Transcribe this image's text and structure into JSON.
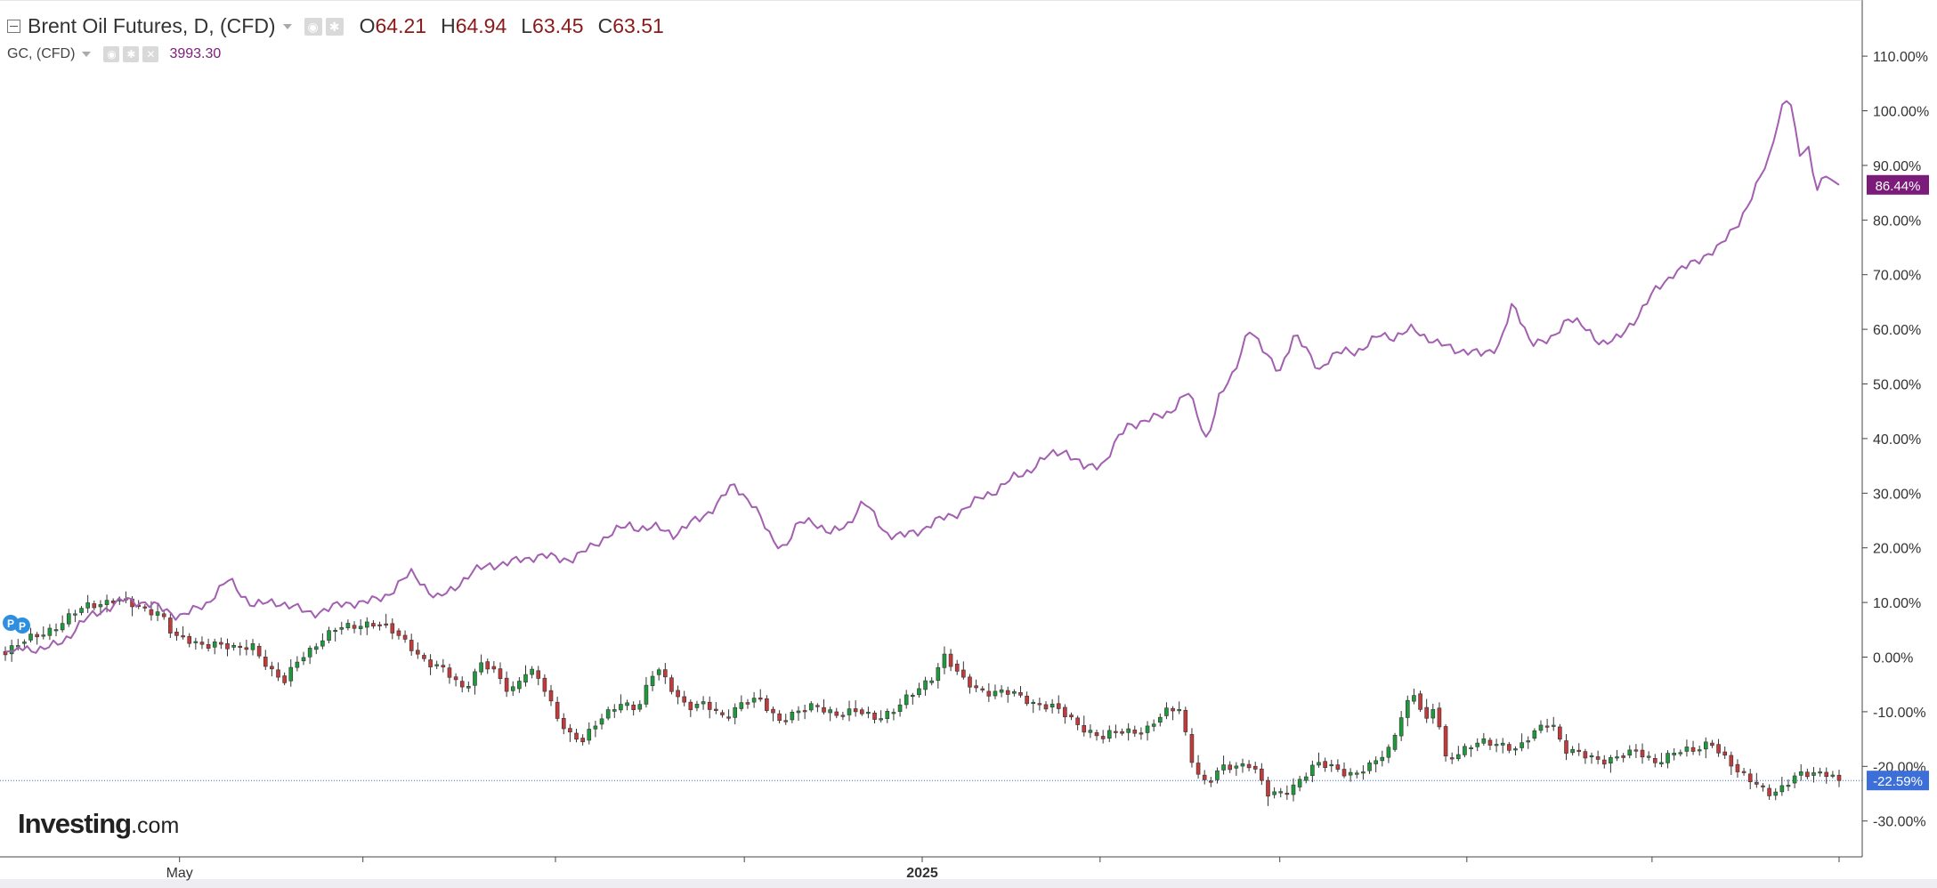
{
  "legend": {
    "main_title": "Brent Oil Futures, D, (CFD)",
    "ohlc": [
      {
        "k": "O",
        "v": "64.21"
      },
      {
        "k": "H",
        "v": "64.94"
      },
      {
        "k": "L",
        "v": "63.45"
      },
      {
        "k": "C",
        "v": "63.51"
      }
    ],
    "compare_title": "GC, (CFD)",
    "compare_value": "3993.30"
  },
  "logo": {
    "brand": "Investing",
    "suffix": ".com"
  },
  "colors": {
    "gc_line": "#a35fb0",
    "up_candle": "#1e9a3c",
    "down_candle": "#c23a3a",
    "gc_badge": "#7b1c7a",
    "brent_badge": "#3d6fd8",
    "grid_axis": "#444444"
  },
  "chart_data": {
    "type": "line",
    "title": "Brent Oil Futures, D, (CFD)",
    "y_axis": {
      "unit": "%",
      "side": "right",
      "ticks": [
        "110.00%",
        "100.00%",
        "90.00%",
        "80.00%",
        "70.00%",
        "60.00%",
        "50.00%",
        "40.00%",
        "30.00%",
        "20.00%",
        "10.00%",
        "0.00%",
        "-10.00%",
        "-20.00%",
        "-30.00%"
      ],
      "ylim": [
        -35,
        118
      ]
    },
    "x_axis": {
      "labels": [
        {
          "text": "May",
          "x": 0.095
        },
        {
          "text": "2025",
          "x": 0.5
        }
      ],
      "tick_marks": [
        0.095,
        0.195,
        0.3,
        0.403,
        0.5,
        0.597,
        0.695,
        0.797,
        0.898,
        1.0
      ]
    },
    "series": [
      {
        "name": "GC, (CFD)",
        "style": "line",
        "last_label": "86.44%",
        "points": [
          [
            0.0,
            1
          ],
          [
            0.02,
            1.5
          ],
          [
            0.035,
            4
          ],
          [
            0.05,
            8
          ],
          [
            0.065,
            11
          ],
          [
            0.08,
            9
          ],
          [
            0.095,
            8
          ],
          [
            0.11,
            9.5
          ],
          [
            0.122,
            14
          ],
          [
            0.135,
            10
          ],
          [
            0.15,
            9.5
          ],
          [
            0.165,
            8.5
          ],
          [
            0.18,
            9
          ],
          [
            0.195,
            10
          ],
          [
            0.21,
            12
          ],
          [
            0.222,
            15
          ],
          [
            0.235,
            11
          ],
          [
            0.25,
            14
          ],
          [
            0.265,
            17
          ],
          [
            0.28,
            18
          ],
          [
            0.295,
            18
          ],
          [
            0.31,
            18.5
          ],
          [
            0.325,
            21
          ],
          [
            0.34,
            24.5
          ],
          [
            0.355,
            23.5
          ],
          [
            0.365,
            22
          ],
          [
            0.375,
            25
          ],
          [
            0.388,
            28
          ],
          [
            0.397,
            31
          ],
          [
            0.408,
            28
          ],
          [
            0.418,
            22
          ],
          [
            0.425,
            20
          ],
          [
            0.433,
            24
          ],
          [
            0.44,
            25
          ],
          [
            0.45,
            23
          ],
          [
            0.46,
            24.5
          ],
          [
            0.468,
            28
          ],
          [
            0.48,
            23
          ],
          [
            0.49,
            22.5
          ],
          [
            0.5,
            23
          ],
          [
            0.51,
            25
          ],
          [
            0.525,
            28
          ],
          [
            0.54,
            30
          ],
          [
            0.55,
            33
          ],
          [
            0.565,
            36
          ],
          [
            0.578,
            37.5
          ],
          [
            0.588,
            35
          ],
          [
            0.6,
            36
          ],
          [
            0.612,
            42
          ],
          [
            0.625,
            44
          ],
          [
            0.635,
            45
          ],
          [
            0.645,
            48
          ],
          [
            0.655,
            40
          ],
          [
            0.662,
            48
          ],
          [
            0.67,
            52
          ],
          [
            0.678,
            60
          ],
          [
            0.685,
            56
          ],
          [
            0.695,
            53
          ],
          [
            0.703,
            59
          ],
          [
            0.71,
            56
          ],
          [
            0.717,
            52
          ],
          [
            0.722,
            54
          ],
          [
            0.73,
            57
          ],
          [
            0.74,
            56
          ],
          [
            0.75,
            59
          ],
          [
            0.758,
            58
          ],
          [
            0.768,
            61
          ],
          [
            0.78,
            57
          ],
          [
            0.793,
            56
          ],
          [
            0.805,
            56
          ],
          [
            0.815,
            57
          ],
          [
            0.822,
            64
          ],
          [
            0.832,
            58
          ],
          [
            0.842,
            58
          ],
          [
            0.852,
            62
          ],
          [
            0.86,
            60
          ],
          [
            0.87,
            58
          ],
          [
            0.88,
            58.5
          ],
          [
            0.89,
            62
          ],
          [
            0.9,
            67
          ],
          [
            0.91,
            71
          ],
          [
            0.922,
            72
          ],
          [
            0.935,
            75
          ],
          [
            0.945,
            80
          ],
          [
            0.955,
            86
          ],
          [
            0.962,
            91
          ],
          [
            0.968,
            100
          ],
          [
            0.973,
            103
          ],
          [
            0.978,
            92
          ],
          [
            0.983,
            94
          ],
          [
            0.988,
            86
          ],
          [
            0.993,
            88
          ],
          [
            1.0,
            86.44
          ]
        ]
      },
      {
        "name": "Brent Oil Futures, D, (CFD)",
        "style": "candlestick",
        "last_label": "-22.59%",
        "points": [
          [
            0.0,
            1
          ],
          [
            0.015,
            4
          ],
          [
            0.03,
            6
          ],
          [
            0.045,
            9
          ],
          [
            0.06,
            11
          ],
          [
            0.075,
            9
          ],
          [
            0.085,
            8
          ],
          [
            0.092,
            3
          ],
          [
            0.105,
            2.5
          ],
          [
            0.115,
            3
          ],
          [
            0.125,
            1.5
          ],
          [
            0.135,
            2
          ],
          [
            0.145,
            -3
          ],
          [
            0.152,
            -5
          ],
          [
            0.16,
            0
          ],
          [
            0.17,
            3
          ],
          [
            0.18,
            5
          ],
          [
            0.19,
            5.5
          ],
          [
            0.2,
            6
          ],
          [
            0.21,
            5
          ],
          [
            0.22,
            3
          ],
          [
            0.23,
            -1
          ],
          [
            0.24,
            -3
          ],
          [
            0.25,
            -6
          ],
          [
            0.26,
            -1
          ],
          [
            0.268,
            -3
          ],
          [
            0.275,
            -6
          ],
          [
            0.285,
            -2
          ],
          [
            0.292,
            -5
          ],
          [
            0.3,
            -11
          ],
          [
            0.308,
            -14
          ],
          [
            0.315,
            -15
          ],
          [
            0.325,
            -11
          ],
          [
            0.335,
            -8
          ],
          [
            0.345,
            -10
          ],
          [
            0.355,
            -2
          ],
          [
            0.365,
            -6
          ],
          [
            0.372,
            -9
          ],
          [
            0.382,
            -8.5
          ],
          [
            0.392,
            -11
          ],
          [
            0.402,
            -9
          ],
          [
            0.412,
            -8
          ],
          [
            0.422,
            -11
          ],
          [
            0.432,
            -10
          ],
          [
            0.442,
            -9
          ],
          [
            0.455,
            -11
          ],
          [
            0.465,
            -10
          ],
          [
            0.475,
            -10.5
          ],
          [
            0.485,
            -9.5
          ],
          [
            0.495,
            -7
          ],
          [
            0.505,
            -4
          ],
          [
            0.512,
            0
          ],
          [
            0.522,
            -4
          ],
          [
            0.535,
            -6
          ],
          [
            0.548,
            -7
          ],
          [
            0.56,
            -8.5
          ],
          [
            0.572,
            -9
          ],
          [
            0.585,
            -12
          ],
          [
            0.598,
            -15
          ],
          [
            0.61,
            -14
          ],
          [
            0.622,
            -13
          ],
          [
            0.632,
            -10
          ],
          [
            0.64,
            -9
          ],
          [
            0.648,
            -20
          ],
          [
            0.655,
            -24
          ],
          [
            0.662,
            -21
          ],
          [
            0.672,
            -19.5
          ],
          [
            0.68,
            -19
          ],
          [
            0.688,
            -25
          ],
          [
            0.697,
            -25
          ],
          [
            0.705,
            -23
          ],
          [
            0.715,
            -20
          ],
          [
            0.725,
            -20
          ],
          [
            0.735,
            -21
          ],
          [
            0.745,
            -20
          ],
          [
            0.755,
            -17
          ],
          [
            0.762,
            -10
          ],
          [
            0.768,
            -7
          ],
          [
            0.775,
            -12
          ],
          [
            0.78,
            -8
          ],
          [
            0.785,
            -18
          ],
          [
            0.795,
            -17
          ],
          [
            0.805,
            -16
          ],
          [
            0.815,
            -16
          ],
          [
            0.825,
            -17
          ],
          [
            0.835,
            -13
          ],
          [
            0.843,
            -11
          ],
          [
            0.85,
            -17
          ],
          [
            0.86,
            -18.5
          ],
          [
            0.87,
            -19
          ],
          [
            0.88,
            -18
          ],
          [
            0.89,
            -17
          ],
          [
            0.9,
            -19
          ],
          [
            0.91,
            -18
          ],
          [
            0.92,
            -17.5
          ],
          [
            0.93,
            -15
          ],
          [
            0.937,
            -18
          ],
          [
            0.945,
            -21
          ],
          [
            0.955,
            -23
          ],
          [
            0.963,
            -25.5
          ],
          [
            0.97,
            -24.5
          ],
          [
            0.977,
            -21.5
          ],
          [
            0.985,
            -20.5
          ],
          [
            0.993,
            -21
          ],
          [
            1.0,
            -22.59
          ]
        ]
      }
    ],
    "reference_line": {
      "value": -22.59,
      "style": "dotted"
    },
    "grid": false,
    "legend_position": "top-left"
  }
}
